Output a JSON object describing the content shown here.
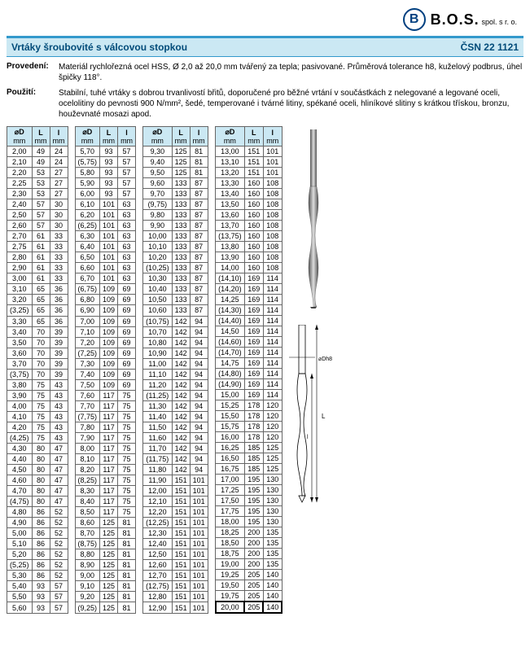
{
  "header": {
    "logo_letter": "B",
    "brand": "B.O.S.",
    "brand_sub": "spol. s r. o."
  },
  "titlebar": {
    "title": "Vrtáky šroubovité s válcovou stopkou",
    "standard": "ČSN 22 1121"
  },
  "desc": [
    {
      "label": "Provedení:",
      "text": "Materiál rychlořezná ocel HSS, Ø 2,0 až 20,0 mm tvářený za tepla; pasivované.\nPrůměrová tolerance h8, kuželový podbrus, úhel špičky 118°."
    },
    {
      "label": "Použití:",
      "text": "Stabilní, tuhé vrtáky s dobrou trvanlivostí břitů, doporučené pro běžné vrtání v součástkách z nelegované a legované oceli, ocelolitiny do pevnosti 900 N/mm², šedé, temperované i tvárné litiny, spékané oceli, hliníkové slitiny s krátkou třískou, bronzu, houževnaté mosazi apod."
    }
  ],
  "columns": {
    "d": "⌀D",
    "d_unit": "mm",
    "l_big": "L",
    "l_big_unit": "mm",
    "l_small": "l",
    "l_small_unit": "mm"
  },
  "style": {
    "accent": "#3399cc",
    "header_bg": "#cbe8f3",
    "border_color": "#666666",
    "font_size_body": 10,
    "font_size_table": 9,
    "highlight_border": "#000000"
  },
  "diagram": {
    "dim_d": "⌀Dh8",
    "dim_L": "L",
    "dim_l": "l"
  },
  "tables": [
    [
      [
        "2,00",
        "49",
        "24"
      ],
      [
        "2,10",
        "49",
        "24"
      ],
      [
        "2,20",
        "53",
        "27"
      ],
      [
        "2,25",
        "53",
        "27"
      ],
      [
        "2,30",
        "53",
        "27"
      ],
      [
        "2,40",
        "57",
        "30"
      ],
      [
        "2,50",
        "57",
        "30"
      ],
      [
        "2,60",
        "57",
        "30"
      ],
      [
        "2,70",
        "61",
        "33"
      ],
      [
        "2,75",
        "61",
        "33"
      ],
      [
        "2,80",
        "61",
        "33"
      ],
      [
        "2,90",
        "61",
        "33"
      ],
      [
        "3,00",
        "61",
        "33"
      ],
      [
        "3,10",
        "65",
        "36"
      ],
      [
        "3,20",
        "65",
        "36"
      ],
      [
        "(3,25)",
        "65",
        "36"
      ],
      [
        "3,30",
        "65",
        "36"
      ],
      [
        "3,40",
        "70",
        "39"
      ],
      [
        "3,50",
        "70",
        "39"
      ],
      [
        "3,60",
        "70",
        "39"
      ],
      [
        "3,70",
        "70",
        "39"
      ],
      [
        "(3,75)",
        "70",
        "39"
      ],
      [
        "3,80",
        "75",
        "43"
      ],
      [
        "3,90",
        "75",
        "43"
      ],
      [
        "4,00",
        "75",
        "43"
      ],
      [
        "4,10",
        "75",
        "43"
      ],
      [
        "4,20",
        "75",
        "43"
      ],
      [
        "(4,25)",
        "75",
        "43"
      ],
      [
        "4,30",
        "80",
        "47"
      ],
      [
        "4,40",
        "80",
        "47"
      ],
      [
        "4,50",
        "80",
        "47"
      ],
      [
        "4,60",
        "80",
        "47"
      ],
      [
        "4,70",
        "80",
        "47"
      ],
      [
        "(4,75)",
        "80",
        "47"
      ],
      [
        "4,80",
        "86",
        "52"
      ],
      [
        "4,90",
        "86",
        "52"
      ],
      [
        "5,00",
        "86",
        "52"
      ],
      [
        "5,10",
        "86",
        "52"
      ],
      [
        "5,20",
        "86",
        "52"
      ],
      [
        "(5,25)",
        "86",
        "52"
      ],
      [
        "5,30",
        "86",
        "52"
      ],
      [
        "5,40",
        "93",
        "57"
      ],
      [
        "5,50",
        "93",
        "57"
      ],
      [
        "5,60",
        "93",
        "57"
      ]
    ],
    [
      [
        "5,70",
        "93",
        "57"
      ],
      [
        "(5,75)",
        "93",
        "57"
      ],
      [
        "5,80",
        "93",
        "57"
      ],
      [
        "5,90",
        "93",
        "57"
      ],
      [
        "6,00",
        "93",
        "57"
      ],
      [
        "6,10",
        "101",
        "63"
      ],
      [
        "6,20",
        "101",
        "63"
      ],
      [
        "(6,25)",
        "101",
        "63"
      ],
      [
        "6,30",
        "101",
        "63"
      ],
      [
        "6,40",
        "101",
        "63"
      ],
      [
        "6,50",
        "101",
        "63"
      ],
      [
        "6,60",
        "101",
        "63"
      ],
      [
        "6,70",
        "101",
        "63"
      ],
      [
        "(6,75)",
        "109",
        "69"
      ],
      [
        "6,80",
        "109",
        "69"
      ],
      [
        "6,90",
        "109",
        "69"
      ],
      [
        "7,00",
        "109",
        "69"
      ],
      [
        "7,10",
        "109",
        "69"
      ],
      [
        "7,20",
        "109",
        "69"
      ],
      [
        "(7,25)",
        "109",
        "69"
      ],
      [
        "7,30",
        "109",
        "69"
      ],
      [
        "7,40",
        "109",
        "69"
      ],
      [
        "7,50",
        "109",
        "69"
      ],
      [
        "7,60",
        "117",
        "75"
      ],
      [
        "7,70",
        "117",
        "75"
      ],
      [
        "(7,75)",
        "117",
        "75"
      ],
      [
        "7,80",
        "117",
        "75"
      ],
      [
        "7,90",
        "117",
        "75"
      ],
      [
        "8,00",
        "117",
        "75"
      ],
      [
        "8,10",
        "117",
        "75"
      ],
      [
        "8,20",
        "117",
        "75"
      ],
      [
        "(8,25)",
        "117",
        "75"
      ],
      [
        "8,30",
        "117",
        "75"
      ],
      [
        "8,40",
        "117",
        "75"
      ],
      [
        "8,50",
        "117",
        "75"
      ],
      [
        "8,60",
        "125",
        "81"
      ],
      [
        "8,70",
        "125",
        "81"
      ],
      [
        "(8,75)",
        "125",
        "81"
      ],
      [
        "8,80",
        "125",
        "81"
      ],
      [
        "8,90",
        "125",
        "81"
      ],
      [
        "9,00",
        "125",
        "81"
      ],
      [
        "9,10",
        "125",
        "81"
      ],
      [
        "9,20",
        "125",
        "81"
      ],
      [
        "(9,25)",
        "125",
        "81"
      ]
    ],
    [
      [
        "9,30",
        "125",
        "81"
      ],
      [
        "9,40",
        "125",
        "81"
      ],
      [
        "9,50",
        "125",
        "81"
      ],
      [
        "9,60",
        "133",
        "87"
      ],
      [
        "9,70",
        "133",
        "87"
      ],
      [
        "(9,75)",
        "133",
        "87"
      ],
      [
        "9,80",
        "133",
        "87"
      ],
      [
        "9,90",
        "133",
        "87"
      ],
      [
        "10,00",
        "133",
        "87"
      ],
      [
        "10,10",
        "133",
        "87"
      ],
      [
        "10,20",
        "133",
        "87"
      ],
      [
        "(10,25)",
        "133",
        "87"
      ],
      [
        "10,30",
        "133",
        "87"
      ],
      [
        "10,40",
        "133",
        "87"
      ],
      [
        "10,50",
        "133",
        "87"
      ],
      [
        "10,60",
        "133",
        "87"
      ],
      [
        "(10,75)",
        "142",
        "94"
      ],
      [
        "10,70",
        "142",
        "94"
      ],
      [
        "10,80",
        "142",
        "94"
      ],
      [
        "10,90",
        "142",
        "94"
      ],
      [
        "11,00",
        "142",
        "94"
      ],
      [
        "11,10",
        "142",
        "94"
      ],
      [
        "11,20",
        "142",
        "94"
      ],
      [
        "(11,25)",
        "142",
        "94"
      ],
      [
        "11,30",
        "142",
        "94"
      ],
      [
        "11,40",
        "142",
        "94"
      ],
      [
        "11,50",
        "142",
        "94"
      ],
      [
        "11,60",
        "142",
        "94"
      ],
      [
        "11,70",
        "142",
        "94"
      ],
      [
        "(11,75)",
        "142",
        "94"
      ],
      [
        "11,80",
        "142",
        "94"
      ],
      [
        "11,90",
        "151",
        "101"
      ],
      [
        "12,00",
        "151",
        "101"
      ],
      [
        "12,10",
        "151",
        "101"
      ],
      [
        "12,20",
        "151",
        "101"
      ],
      [
        "(12,25)",
        "151",
        "101"
      ],
      [
        "12,30",
        "151",
        "101"
      ],
      [
        "12,40",
        "151",
        "101"
      ],
      [
        "12,50",
        "151",
        "101"
      ],
      [
        "12,60",
        "151",
        "101"
      ],
      [
        "12,70",
        "151",
        "101"
      ],
      [
        "(12,75)",
        "151",
        "101"
      ],
      [
        "12,80",
        "151",
        "101"
      ],
      [
        "12,90",
        "151",
        "101"
      ]
    ],
    [
      [
        "13,00",
        "151",
        "101"
      ],
      [
        "13,10",
        "151",
        "101"
      ],
      [
        "13,20",
        "151",
        "101"
      ],
      [
        "13,30",
        "160",
        "108"
      ],
      [
        "13,40",
        "160",
        "108"
      ],
      [
        "13,50",
        "160",
        "108"
      ],
      [
        "13,60",
        "160",
        "108"
      ],
      [
        "13,70",
        "160",
        "108"
      ],
      [
        "(13,75)",
        "160",
        "108"
      ],
      [
        "13,80",
        "160",
        "108"
      ],
      [
        "13,90",
        "160",
        "108"
      ],
      [
        "14,00",
        "160",
        "108"
      ],
      [
        "(14,10)",
        "169",
        "114"
      ],
      [
        "(14,20)",
        "169",
        "114"
      ],
      [
        "14,25",
        "169",
        "114"
      ],
      [
        "(14,30)",
        "169",
        "114"
      ],
      [
        "(14,40)",
        "169",
        "114"
      ],
      [
        "14,50",
        "169",
        "114"
      ],
      [
        "(14,60)",
        "169",
        "114"
      ],
      [
        "(14,70)",
        "169",
        "114"
      ],
      [
        "14,75",
        "169",
        "114"
      ],
      [
        "(14,80)",
        "169",
        "114"
      ],
      [
        "(14,90)",
        "169",
        "114"
      ],
      [
        "15,00",
        "169",
        "114"
      ],
      [
        "15,25",
        "178",
        "120"
      ],
      [
        "15,50",
        "178",
        "120"
      ],
      [
        "15,75",
        "178",
        "120"
      ],
      [
        "16,00",
        "178",
        "120"
      ],
      [
        "16,25",
        "185",
        "125"
      ],
      [
        "16,50",
        "185",
        "125"
      ],
      [
        "16,75",
        "185",
        "125"
      ],
      [
        "17,00",
        "195",
        "130"
      ],
      [
        "17,25",
        "195",
        "130"
      ],
      [
        "17,50",
        "195",
        "130"
      ],
      [
        "17,75",
        "195",
        "130"
      ],
      [
        "18,00",
        "195",
        "130"
      ],
      [
        "18,25",
        "200",
        "135"
      ],
      [
        "18,50",
        "200",
        "135"
      ],
      [
        "18,75",
        "200",
        "135"
      ],
      [
        "19,00",
        "200",
        "135"
      ],
      [
        "19,25",
        "205",
        "140"
      ],
      [
        "19,50",
        "205",
        "140"
      ],
      [
        "19,75",
        "205",
        "140"
      ],
      [
        "20,00",
        "205",
        "140"
      ]
    ]
  ],
  "highlight": {
    "table": 3,
    "row": 43
  }
}
